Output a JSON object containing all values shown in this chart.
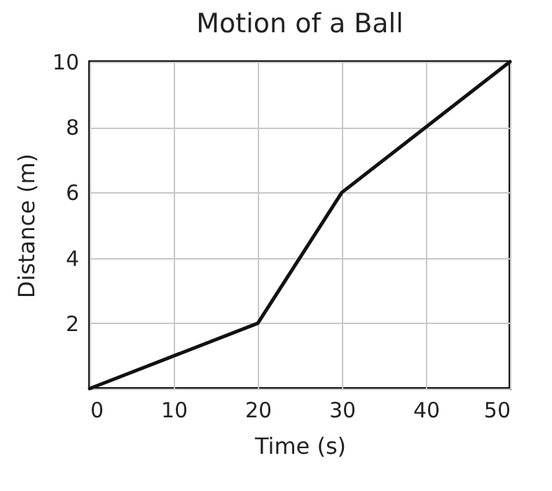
{
  "chart_data": {
    "type": "line",
    "title": "Motion of a Ball",
    "xlabel": "Time (s)",
    "ylabel": "Distance (m)",
    "x": [
      0,
      20,
      30,
      50
    ],
    "series": [
      {
        "color": "#111111",
        "values": [
          0,
          2,
          6,
          10
        ]
      }
    ],
    "xlim": [
      0,
      50
    ],
    "xticks": [
      0,
      10,
      20,
      30,
      40,
      50
    ],
    "ylim": [
      0,
      10
    ],
    "yticks": [
      {
        "value": 0,
        "label": null
      },
      2,
      4,
      6,
      8,
      10
    ],
    "grid": true,
    "marker": "none",
    "line_style": "solid"
  }
}
